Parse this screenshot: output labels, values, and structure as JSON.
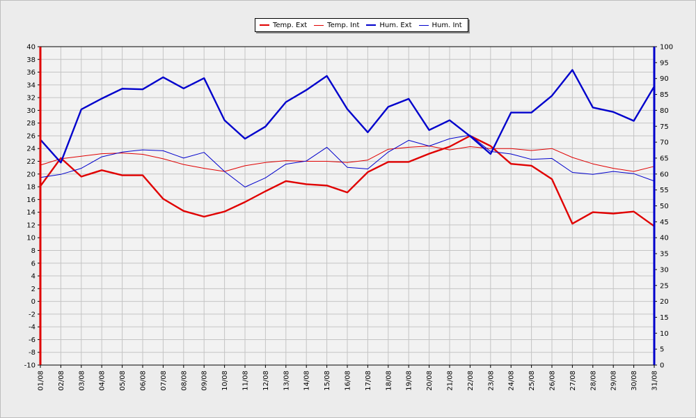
{
  "chart_data": {
    "type": "line",
    "x": [
      "01/08",
      "02/08",
      "03/08",
      "04/08",
      "05/08",
      "06/08",
      "07/08",
      "08/08",
      "09/08",
      "10/08",
      "11/08",
      "12/08",
      "13/08",
      "14/08",
      "15/08",
      "16/08",
      "17/08",
      "18/08",
      "19/08",
      "20/08",
      "21/08",
      "22/08",
      "23/08",
      "24/08",
      "25/08",
      "26/08",
      "27/08",
      "28/08",
      "29/08",
      "30/08",
      "31/08"
    ],
    "y_left": {
      "min": -10,
      "max": 40,
      "step": 2,
      "color": "#e00000"
    },
    "y_right": {
      "min": 0,
      "max": 100,
      "step": 5,
      "color": "#0000cc"
    },
    "grid": true,
    "legend_position": "top-center",
    "series": [
      {
        "name": "Temp. Ext",
        "axis": "left",
        "color": "#e00000",
        "width": "thick",
        "values": [
          18.1,
          22.5,
          19.6,
          20.6,
          19.8,
          19.8,
          16.1,
          14.2,
          13.3,
          14.1,
          15.6,
          17.3,
          18.9,
          18.4,
          18.2,
          17.1,
          20.3,
          21.9,
          21.9,
          23.2,
          24.3,
          26.0,
          24.4,
          21.6,
          21.3,
          19.2,
          12.2,
          14.0,
          13.8,
          14.1,
          11.8
        ]
      },
      {
        "name": "Temp. Int",
        "axis": "left",
        "color": "#e00000",
        "width": "thin",
        "values": [
          21.4,
          22.4,
          22.8,
          23.2,
          23.3,
          23.1,
          22.4,
          21.5,
          20.9,
          20.4,
          21.3,
          21.8,
          22.1,
          22.0,
          22.0,
          21.8,
          22.2,
          23.9,
          24.2,
          24.4,
          23.8,
          24.3,
          24.0,
          24.0,
          23.7,
          24.0,
          22.6,
          21.6,
          20.9,
          20.4,
          21.2
        ]
      },
      {
        "name": "Hum. Ext",
        "axis": "right",
        "color": "#0000cc",
        "width": "thick",
        "values": [
          70.8,
          63.6,
          80.3,
          83.7,
          86.8,
          86.6,
          90.4,
          86.9,
          90.1,
          76.9,
          71.1,
          74.9,
          82.6,
          86.4,
          90.8,
          80.4,
          73.1,
          81.1,
          83.6,
          73.8,
          76.9,
          71.9,
          66.3,
          79.3,
          79.3,
          84.6,
          92.7,
          80.9,
          79.5,
          76.7,
          87.5
        ]
      },
      {
        "name": "Hum. Int",
        "axis": "right",
        "color": "#0000cc",
        "width": "thin",
        "values": [
          58.9,
          59.9,
          61.8,
          65.4,
          66.9,
          67.6,
          67.3,
          65.0,
          66.8,
          60.8,
          55.9,
          58.8,
          63.1,
          64.1,
          68.4,
          62.1,
          61.6,
          66.9,
          70.6,
          68.8,
          71.1,
          72.2,
          67.1,
          66.3,
          64.6,
          64.9,
          60.5,
          59.9,
          60.8,
          60.1,
          57.8
        ]
      }
    ]
  }
}
